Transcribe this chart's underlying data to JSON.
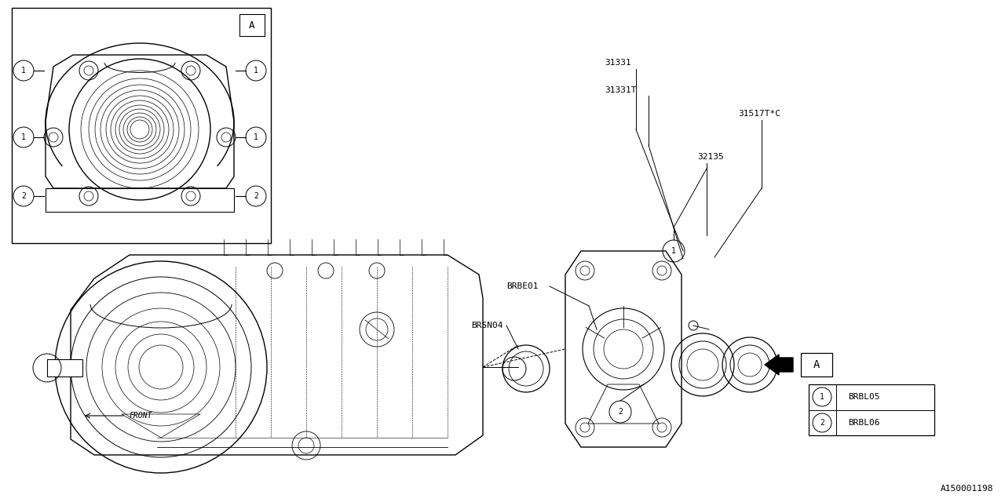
{
  "bg_color": "#ffffff",
  "line_color": "#000000",
  "fig_width": 12.8,
  "fig_height": 6.4,
  "watermark": "A150001198",
  "legend_items": [
    {
      "num": "1",
      "code": "BRBL05"
    },
    {
      "num": "2",
      "code": "BRBL06"
    }
  ]
}
